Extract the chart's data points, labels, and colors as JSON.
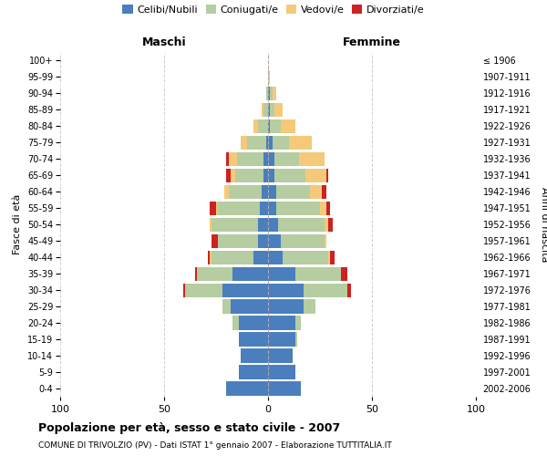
{
  "age_groups": [
    "100+",
    "95-99",
    "90-94",
    "85-89",
    "80-84",
    "75-79",
    "70-74",
    "65-69",
    "60-64",
    "55-59",
    "50-54",
    "45-49",
    "40-44",
    "35-39",
    "30-34",
    "25-29",
    "20-24",
    "15-19",
    "10-14",
    "5-9",
    "0-4"
  ],
  "birth_years": [
    "≤ 1906",
    "1907-1911",
    "1912-1916",
    "1917-1921",
    "1922-1926",
    "1927-1931",
    "1932-1936",
    "1937-1941",
    "1942-1946",
    "1947-1951",
    "1952-1956",
    "1957-1961",
    "1962-1966",
    "1967-1971",
    "1972-1976",
    "1977-1981",
    "1982-1986",
    "1987-1991",
    "1992-1996",
    "1997-2001",
    "2002-2006"
  ],
  "male_celibe": [
    0,
    0,
    0,
    0,
    0,
    1,
    2,
    2,
    3,
    4,
    5,
    5,
    7,
    17,
    22,
    18,
    14,
    14,
    13,
    14,
    20
  ],
  "male_coniugato": [
    0,
    0,
    1,
    2,
    5,
    9,
    13,
    14,
    16,
    20,
    22,
    19,
    20,
    17,
    18,
    4,
    3,
    0,
    0,
    0,
    0
  ],
  "male_vedovo": [
    0,
    0,
    0,
    1,
    2,
    3,
    4,
    2,
    2,
    1,
    1,
    0,
    1,
    0,
    0,
    0,
    0,
    0,
    0,
    0,
    0
  ],
  "male_divorziato": [
    0,
    0,
    0,
    0,
    0,
    0,
    1,
    2,
    0,
    3,
    0,
    3,
    1,
    1,
    1,
    0,
    0,
    0,
    0,
    0,
    0
  ],
  "female_celibe": [
    0,
    0,
    1,
    1,
    1,
    2,
    3,
    3,
    4,
    4,
    5,
    6,
    7,
    13,
    17,
    17,
    13,
    13,
    12,
    13,
    16
  ],
  "female_coniugato": [
    0,
    0,
    1,
    2,
    5,
    8,
    12,
    15,
    16,
    21,
    22,
    21,
    22,
    22,
    21,
    6,
    3,
    1,
    0,
    0,
    0
  ],
  "female_vedovo": [
    0,
    1,
    2,
    4,
    7,
    11,
    12,
    10,
    6,
    3,
    2,
    1,
    1,
    0,
    0,
    0,
    0,
    0,
    0,
    0,
    0
  ],
  "female_divorziato": [
    0,
    0,
    0,
    0,
    0,
    0,
    0,
    1,
    2,
    2,
    2,
    0,
    2,
    3,
    2,
    0,
    0,
    0,
    0,
    0,
    0
  ],
  "color_celibe": "#4a7ebd",
  "color_coniugato": "#b5cda0",
  "color_vedovo": "#f5c97a",
  "color_divorziato": "#cc2222",
  "title_bold": "Popolazione per età, sesso e stato civile - 2007",
  "subtitle": "COMUNE DI TRIVOLZIO (PV) - Dati ISTAT 1° gennaio 2007 - Elaborazione TUTTITALIA.IT",
  "xlabel_left": "Maschi",
  "xlabel_right": "Femmine",
  "ylabel_left": "Fasce di età",
  "ylabel_right": "Anni di nascita",
  "xlim": 100,
  "background_color": "#ffffff",
  "grid_color": "#cccccc",
  "bar_height": 0.85
}
